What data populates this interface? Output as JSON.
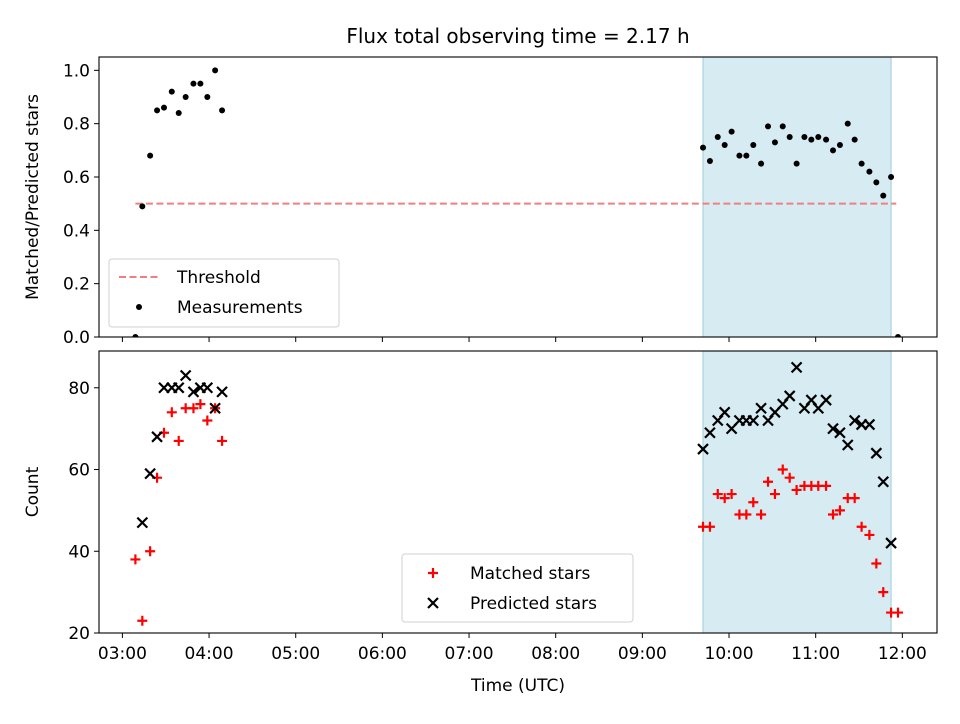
{
  "figure": {
    "title": "Flux total observing time = 2.17 h"
  },
  "chart_data": [
    {
      "type": "scatter",
      "ylabel": "Matched/Predicted stars",
      "xlabel": "",
      "ylim": [
        0,
        1.05
      ],
      "yticks": [
        0.0,
        0.2,
        0.4,
        0.6,
        0.8,
        1.0
      ],
      "ytick_labels": [
        "0.0",
        "0.2",
        "0.4",
        "0.6",
        "0.8",
        "1.0"
      ],
      "xlim_hours": [
        2.73,
        12.4
      ],
      "grid": false,
      "legend": {
        "placement": "lower-left",
        "entries": [
          "Threshold",
          "Measurements"
        ]
      },
      "highlight_span_hours": [
        9.7,
        11.87
      ],
      "threshold": {
        "name": "Threshold",
        "value": 0.5,
        "x_range_hours": [
          3.15,
          11.93
        ],
        "color": "#f08080"
      },
      "series": [
        {
          "name": "Measurements",
          "color": "#000000",
          "x_hours": [
            3.15,
            3.23,
            3.32,
            3.4,
            3.48,
            3.57,
            3.65,
            3.73,
            3.82,
            3.9,
            3.98,
            4.07,
            4.15,
            9.7,
            9.78,
            9.87,
            9.95,
            10.03,
            10.12,
            10.2,
            10.28,
            10.37,
            10.45,
            10.53,
            10.62,
            10.7,
            10.78,
            10.87,
            10.95,
            11.03,
            11.12,
            11.2,
            11.28,
            11.37,
            11.45,
            11.53,
            11.62,
            11.7,
            11.78,
            11.87,
            11.95
          ],
          "y": [
            0.0,
            0.49,
            0.68,
            0.85,
            0.86,
            0.92,
            0.84,
            0.9,
            0.95,
            0.95,
            0.9,
            1.0,
            0.85,
            0.71,
            0.66,
            0.75,
            0.72,
            0.77,
            0.68,
            0.68,
            0.72,
            0.65,
            0.79,
            0.73,
            0.79,
            0.75,
            0.65,
            0.75,
            0.74,
            0.75,
            0.74,
            0.7,
            0.72,
            0.8,
            0.74,
            0.65,
            0.62,
            0.58,
            0.53,
            0.6,
            0.0
          ]
        }
      ]
    },
    {
      "type": "scatter",
      "ylabel": "Count",
      "xlabel": "Time (UTC)",
      "ylim": [
        20,
        89
      ],
      "yticks": [
        20,
        40,
        60,
        80
      ],
      "ytick_labels": [
        "20",
        "40",
        "60",
        "80"
      ],
      "xlim_hours": [
        2.73,
        12.4
      ],
      "xticks_hours": [
        3,
        4,
        5,
        6,
        7,
        8,
        9,
        10,
        11,
        12
      ],
      "xtick_labels": [
        "03:00",
        "04:00",
        "05:00",
        "06:00",
        "07:00",
        "08:00",
        "09:00",
        "10:00",
        "11:00",
        "12:00"
      ],
      "grid": false,
      "legend": {
        "placement": "lower-center",
        "entries": [
          "Matched stars",
          "Predicted stars"
        ]
      },
      "highlight_span_hours": [
        9.7,
        11.87
      ],
      "series": [
        {
          "name": "Matched stars",
          "marker": "plus",
          "color": "#ff0000",
          "x_hours": [
            3.15,
            3.23,
            3.32,
            3.4,
            3.48,
            3.57,
            3.65,
            3.73,
            3.82,
            3.9,
            3.98,
            4.07,
            4.15,
            9.7,
            9.78,
            9.87,
            9.95,
            10.03,
            10.12,
            10.2,
            10.28,
            10.37,
            10.45,
            10.53,
            10.62,
            10.7,
            10.78,
            10.87,
            10.95,
            11.03,
            11.12,
            11.2,
            11.28,
            11.37,
            11.45,
            11.53,
            11.62,
            11.7,
            11.78,
            11.87,
            11.95
          ],
          "y": [
            38,
            23,
            40,
            58,
            69,
            74,
            67,
            75,
            75,
            76,
            72,
            75,
            67,
            46,
            46,
            54,
            53,
            54,
            49,
            49,
            52,
            49,
            57,
            54,
            60,
            58,
            55,
            56,
            56,
            56,
            56,
            49,
            50,
            53,
            53,
            46,
            44,
            37,
            30,
            25,
            25
          ]
        },
        {
          "name": "Predicted stars",
          "marker": "x",
          "color": "#000000",
          "x_hours": [
            3.23,
            3.32,
            3.4,
            3.48,
            3.57,
            3.65,
            3.73,
            3.82,
            3.9,
            3.98,
            4.07,
            4.15,
            9.7,
            9.78,
            9.87,
            9.95,
            10.03,
            10.12,
            10.2,
            10.28,
            10.37,
            10.45,
            10.53,
            10.62,
            10.7,
            10.78,
            10.87,
            10.95,
            11.03,
            11.12,
            11.2,
            11.28,
            11.37,
            11.45,
            11.53,
            11.62,
            11.7,
            11.78,
            11.87
          ],
          "y": [
            47,
            59,
            68,
            80,
            80,
            80,
            83,
            79,
            80,
            80,
            75,
            79,
            65,
            69,
            72,
            74,
            70,
            72,
            72,
            72,
            75,
            72,
            74,
            76,
            78,
            85,
            75,
            77,
            75,
            77,
            70,
            69,
            66,
            72,
            71,
            71,
            64,
            57,
            42
          ]
        }
      ]
    }
  ]
}
